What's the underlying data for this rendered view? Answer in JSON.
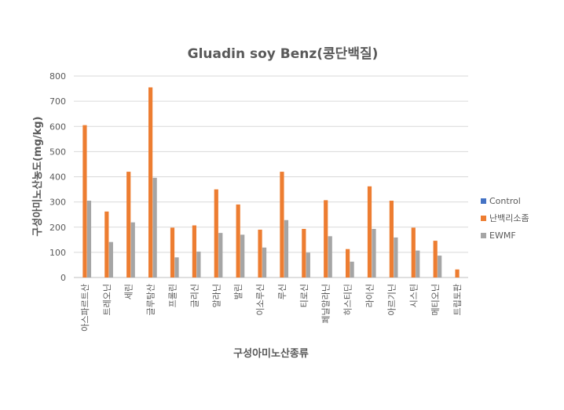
{
  "chart_data": {
    "type": "bar",
    "title": "Gluadin soy Benz(콩단백질)",
    "xlabel": "구성아미노산종류",
    "ylabel": "구성아미노산농도(mg/kg)",
    "ylim": [
      0,
      800
    ],
    "yticks": [
      "0",
      "100",
      "200",
      "300",
      "400",
      "500",
      "600",
      "700",
      "800"
    ],
    "grid": true,
    "legend_position": "right",
    "categories": [
      "아스파르트산",
      "트레오닌",
      "세린",
      "글루탐산",
      "프롤린",
      "글리신",
      "알라닌",
      "발린",
      "이소루신",
      "루신",
      "티로신",
      "페닐알라닌",
      "히스티딘",
      "라이신",
      "아르기닌",
      "시스틴",
      "메티오닌",
      "트립토판"
    ],
    "series": [
      {
        "name": "Control",
        "color": "#4472C4",
        "values": [
          0,
          0,
          0,
          0,
          0,
          0,
          0,
          0,
          0,
          0,
          0,
          0,
          0,
          0,
          0,
          0,
          0,
          0
        ]
      },
      {
        "name": "난백리소좀",
        "color": "#ED7D31",
        "values": [
          605,
          262,
          420,
          755,
          198,
          207,
          350,
          290,
          190,
          420,
          193,
          307,
          113,
          362,
          305,
          198,
          146,
          32
        ]
      },
      {
        "name": "EWMF",
        "color": "#A5A5A5",
        "values": [
          305,
          141,
          219,
          396,
          80,
          103,
          177,
          170,
          119,
          228,
          99,
          164,
          63,
          193,
          159,
          107,
          87,
          0
        ]
      }
    ]
  }
}
